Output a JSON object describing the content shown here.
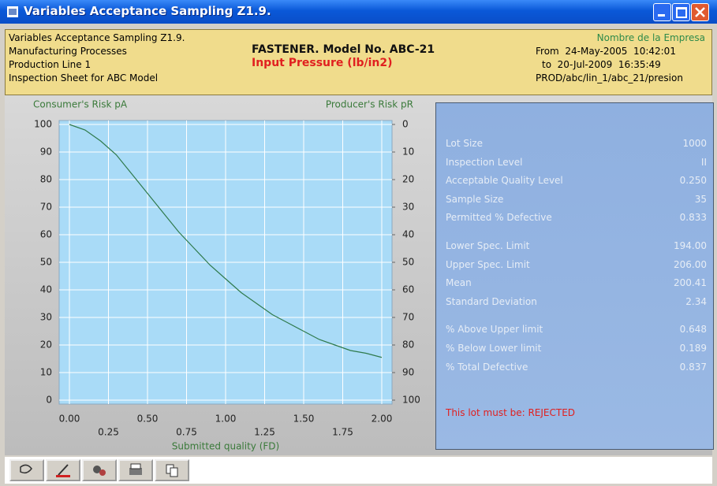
{
  "window": {
    "title": "Variables Acceptance Sampling Z1.9."
  },
  "header": {
    "left": [
      "Variables Acceptance Sampling Z1.9.",
      "Manufacturing Processes",
      "Production Line 1",
      "Inspection Sheet for ABC Model"
    ],
    "title": "FASTENER. Model No. ABC-21",
    "subtitle": "Input Pressure (lb/in2)",
    "right": [
      "Nombre de la Empresa",
      "From  24-May-2005  10:42:01",
      "to  20-Jul-2009  16:35:49",
      "PROD/abc/lin_1/abc_21/presion"
    ]
  },
  "chart_data": {
    "type": "line",
    "y_label": "Consumer's Risk pA",
    "y2_label": "Producer's Risk pR",
    "x_label": "Submitted quality (FD)",
    "x": [
      0,
      0.1,
      0.2,
      0.3,
      0.4,
      0.5,
      0.6,
      0.7,
      0.8,
      0.9,
      1.0,
      1.1,
      1.2,
      1.3,
      1.4,
      1.5,
      1.6,
      1.7,
      1.8,
      1.9,
      2.0
    ],
    "series": [
      {
        "name": "pA",
        "color": "#2f7a4c",
        "values": [
          100,
          98,
          94,
          89,
          82,
          75,
          68,
          61,
          55,
          49,
          44,
          39,
          35,
          31,
          28,
          25,
          22,
          20,
          18,
          17,
          15.5
        ]
      }
    ],
    "xlim": [
      0,
      2
    ],
    "xticks": [
      {
        "value": 0,
        "label": "0.00"
      },
      0.25,
      {
        "value": 0.5,
        "label": "0.50"
      },
      0.75,
      {
        "value": 1,
        "label": "1.00"
      },
      1.25,
      {
        "value": 1.5,
        "label": "1.50"
      },
      1.75,
      {
        "value": 2,
        "label": "2.00"
      }
    ],
    "ylim": [
      0,
      100
    ],
    "yticks": [
      0,
      10,
      20,
      30,
      40,
      50,
      60,
      70,
      80,
      90,
      100
    ],
    "y2lim": [
      100,
      0
    ],
    "y2ticks": [
      0,
      10,
      20,
      30,
      40,
      50,
      60,
      70,
      80,
      90,
      100
    ],
    "grid": true
  },
  "stats": [
    [
      {
        "label": "Lot Size",
        "value": "1000"
      },
      {
        "label": "Inspection Level",
        "value": "II"
      },
      {
        "label": "Acceptable Quality Level",
        "value": "0.250"
      },
      {
        "label": "Sample Size",
        "value": "35"
      },
      {
        "label": "Permitted % Defective",
        "value": "0.833"
      }
    ],
    [
      {
        "label": "Lower Spec. Limit",
        "value": "194.00"
      },
      {
        "label": "Upper Spec. Limit",
        "value": "206.00"
      },
      {
        "label": "Mean",
        "value": "200.41"
      },
      {
        "label": "Standard Deviation",
        "value": "2.34"
      }
    ],
    [
      {
        "label": "% Above Upper limit",
        "value": "0.648"
      },
      {
        "label": "% Below Lower limit",
        "value": "0.189"
      },
      {
        "label": "% Total Defective",
        "value": "0.837"
      }
    ]
  ],
  "verdict": "This lot must be: REJECTED"
}
